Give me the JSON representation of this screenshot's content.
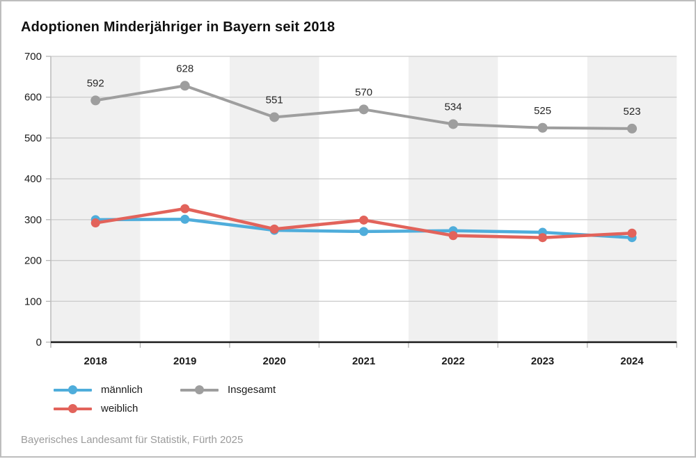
{
  "title": "Adoptionen Minderjähriger in Bayern seit 2018",
  "footer": "Bayerisches Landesamt für Statistik, Fürth 2025",
  "colors": {
    "maennlich": "#4faddb",
    "weiblich": "#e2635b",
    "insgesamt": "#9e9e9e",
    "band": "#f0f0f0",
    "grid": "#c9c9c9",
    "axis_left": "#bbbbbb",
    "axis_bottom": "#1a1a1a",
    "tick": "#b3b3b3",
    "tick_label": "#1a1a1a",
    "data_label": "#262626"
  },
  "legend": {
    "items": [
      {
        "label": "männlich",
        "color": "#4faddb"
      },
      {
        "label": "Insgesamt",
        "color": "#9e9e9e"
      },
      {
        "label": "weiblich",
        "color": "#e2635b"
      }
    ]
  },
  "chart_data": {
    "type": "line",
    "title": "Adoptionen Minderjähriger in Bayern seit 2018",
    "categories": [
      "2018",
      "2019",
      "2020",
      "2021",
      "2022",
      "2023",
      "2024"
    ],
    "series": [
      {
        "name": "Insgesamt",
        "color": "#9e9e9e",
        "values": [
          592,
          628,
          551,
          570,
          534,
          525,
          523
        ],
        "data_labels": true,
        "line_width": 4,
        "marker_radius": 7
      },
      {
        "name": "männlich",
        "color": "#4faddb",
        "values": [
          300,
          301,
          274,
          271,
          273,
          269,
          256
        ],
        "data_labels": false,
        "line_width": 4.5,
        "marker_radius": 6.5
      },
      {
        "name": "weiblich",
        "color": "#e2635b",
        "values": [
          292,
          327,
          277,
          299,
          261,
          256,
          267
        ],
        "data_labels": false,
        "line_width": 4.5,
        "marker_radius": 6.5
      }
    ],
    "xlabel": "",
    "ylabel": "",
    "ylim": [
      0,
      700
    ],
    "ytick_step": 100,
    "yticks": [
      0,
      100,
      200,
      300,
      400,
      500,
      600,
      700
    ],
    "grid": true,
    "alternating_bands": true,
    "legend_position": "bottom-left"
  }
}
